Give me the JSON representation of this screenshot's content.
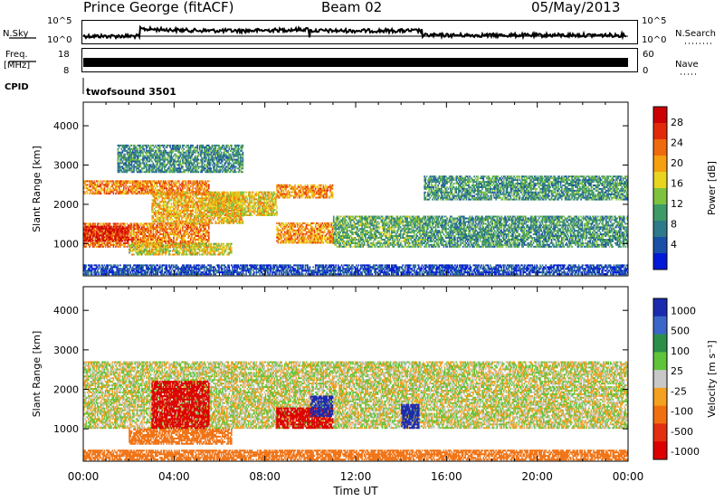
{
  "header": {
    "station": "Prince George (fitACF)",
    "beam": "Beam 02",
    "date": "05/May/2013"
  },
  "strip_labels": {
    "nsky": "N.Sky",
    "nsearch": "N.Search",
    "freq_line1": "Freq.",
    "freq_line2": "[MHz]",
    "nave": "Nave",
    "cpid": "CPID",
    "cpid_value": "twofsound 3501",
    "nsky_ticks": [
      "10^5",
      "10^0"
    ],
    "nsearch_ticks": [
      "10^5",
      "10^0"
    ],
    "freq_ticks": [
      "18",
      "8"
    ],
    "nave_ticks": [
      "60",
      "0"
    ]
  },
  "chart_data": [
    {
      "type": "heatmap",
      "name": "power",
      "ylabel": "Slant Range [km]",
      "y_ticks": [
        "4000",
        "3000",
        "2000",
        "1000"
      ],
      "y_tick_values": [
        4000,
        3000,
        2000,
        1000
      ],
      "ylim": [
        180,
        4600
      ],
      "xlim": [
        0,
        24
      ],
      "colorbar_label": "Power [dB]",
      "colorbar_ticks": [
        "28",
        "24",
        "20",
        "16",
        "12",
        "8",
        "4"
      ],
      "colorbar_colors": [
        "#0018d8",
        "#1a4fa8",
        "#2f7a8a",
        "#3e9a66",
        "#7fc240",
        "#e8d520",
        "#f4a010",
        "#ef6a0c",
        "#e22a0a",
        "#cc0000"
      ],
      "bands": [
        {
          "hours": [
            0.0,
            5.5
          ],
          "ranges": [
            [
              900,
              1500
            ],
            [
              2250,
              2600
            ]
          ],
          "level": 0.72
        },
        {
          "hours": [
            0.0,
            2.0
          ],
          "ranges": [
            [
              1050,
              1450
            ]
          ],
          "level": 0.92
        },
        {
          "hours": [
            2.0,
            6.5
          ],
          "ranges": [
            [
              700,
              1000
            ]
          ],
          "level": 0.55
        },
        {
          "hours": [
            3.0,
            7.0
          ],
          "ranges": [
            [
              1500,
              2300
            ]
          ],
          "level": 0.62
        },
        {
          "hours": [
            5.5,
            8.5
          ],
          "ranges": [
            [
              1700,
              2300
            ]
          ],
          "level": 0.58
        },
        {
          "hours": [
            8.5,
            11.0
          ],
          "ranges": [
            [
              1000,
              1500
            ],
            [
              2150,
              2500
            ]
          ],
          "level": 0.68
        },
        {
          "hours": [
            11.0,
            15.0
          ],
          "ranges": [
            [
              900,
              1700
            ]
          ],
          "level": 0.38
        },
        {
          "hours": [
            15.0,
            24.0
          ],
          "ranges": [
            [
              900,
              1700
            ],
            [
              2100,
              2700
            ]
          ],
          "level": 0.32
        },
        {
          "hours": [
            1.5,
            7.0
          ],
          "ranges": [
            [
              2800,
              3500
            ]
          ],
          "level": 0.3
        },
        {
          "hours": [
            0.0,
            24.0
          ],
          "ranges": [
            [
              200,
              450
            ]
          ],
          "level": 0.12
        }
      ]
    },
    {
      "type": "heatmap",
      "name": "velocity",
      "ylabel": "Slant Range [km]",
      "y_ticks": [
        "4000",
        "3000",
        "2000",
        "1000"
      ],
      "y_tick_values": [
        4000,
        3000,
        2000,
        1000
      ],
      "ylim": [
        180,
        4600
      ],
      "xlim": [
        0,
        24
      ],
      "colorbar_label": "Velocity [m s⁻¹]",
      "colorbar_ticks": [
        "1000",
        "500",
        "100",
        "25",
        "-25",
        "-100",
        "-500",
        "-1000"
      ],
      "colorbar_colors": [
        "#1a2bb0",
        "#3b66c9",
        "#2b8f4a",
        "#5fc43a",
        "#c8c8c8",
        "#f4a020",
        "#f07010",
        "#e23010",
        "#dd0000"
      ],
      "bands": [
        {
          "hours": [
            0.0,
            24.0
          ],
          "ranges": [
            [
              1000,
              2700
            ]
          ],
          "value": 0
        },
        {
          "hours": [
            2.0,
            6.5
          ],
          "ranges": [
            [
              600,
              1000
            ]
          ],
          "value": -300
        },
        {
          "hours": [
            3.0,
            5.5
          ],
          "ranges": [
            [
              1000,
              2200
            ]
          ],
          "value": -900
        },
        {
          "hours": [
            8.5,
            11.0
          ],
          "ranges": [
            [
              1000,
              1500
            ]
          ],
          "value": -900
        },
        {
          "hours": [
            10.0,
            11.0
          ],
          "ranges": [
            [
              1300,
              1800
            ]
          ],
          "value": 800
        },
        {
          "hours": [
            14.0,
            14.8
          ],
          "ranges": [
            [
              1000,
              1600
            ]
          ],
          "value": 800
        },
        {
          "hours": [
            0.0,
            24.0
          ],
          "ranges": [
            [
              200,
              450
            ]
          ],
          "value": -200
        }
      ]
    }
  ],
  "x_axis": {
    "label": "Time UT",
    "ticks": [
      "00:00",
      "04:00",
      "08:00",
      "12:00",
      "16:00",
      "20:00",
      "00:00"
    ],
    "tick_hours": [
      0,
      4,
      8,
      12,
      16,
      20,
      24
    ]
  }
}
